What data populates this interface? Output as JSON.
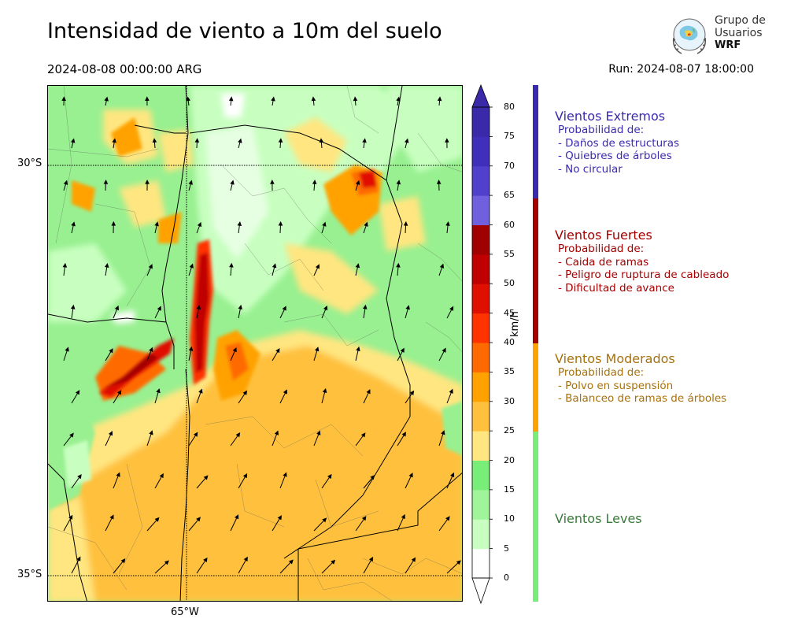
{
  "header": {
    "title": "Intensidad de viento a 10m del suelo",
    "date": "2024-08-08 00:00:00 ARG",
    "run": "Run: 2024-08-07 18:00:00"
  },
  "logo": {
    "line1": "Grupo de",
    "line2": "Usuarios",
    "line3": "WRF"
  },
  "map": {
    "lat_labels": [
      "30°S",
      "35°S"
    ],
    "lon_labels": [
      "65°W"
    ]
  },
  "colorbar": {
    "unit": "km/h",
    "ticks": [
      "0",
      "5",
      "10",
      "15",
      "20",
      "25",
      "30",
      "35",
      "40",
      "45",
      "50",
      "55",
      "60",
      "65",
      "70",
      "75",
      "80"
    ],
    "colors": [
      "#ffffff",
      "#c8ffc0",
      "#a0f59a",
      "#78ed78",
      "#ffe680",
      "#ffc13d",
      "#ffa200",
      "#ff6a00",
      "#ff3300",
      "#e01000",
      "#c00000",
      "#a00000",
      "#7060dd",
      "#5040cc",
      "#3f2fbb",
      "#3a2aaa"
    ]
  },
  "categories": [
    {
      "title": "Vientos Extremos",
      "color": "#3a2ab0",
      "lines": [
        "Probabilidad de:",
        "- Daños de estructuras",
        "- Quiebres de árboles",
        "- No circular"
      ]
    },
    {
      "title": "Vientos Fuertes",
      "color": "#a50000",
      "lines": [
        "Probabilidad de:",
        "- Caida de ramas",
        "- Peligro de ruptura de cableado",
        "- Dificultad de avance"
      ]
    },
    {
      "title": "Vientos Moderados",
      "color": "#a8700a",
      "lines": [
        "Probabilidad de:",
        "- Polvo en suspensión",
        "- Balanceo de ramas de árboles"
      ]
    },
    {
      "title": "Vientos Leves",
      "color": "#3a7a3a",
      "lines": []
    }
  ],
  "category_bar_colors": [
    "#3a2ab0",
    "#a50000",
    "#ffa200",
    "#78ed78"
  ]
}
